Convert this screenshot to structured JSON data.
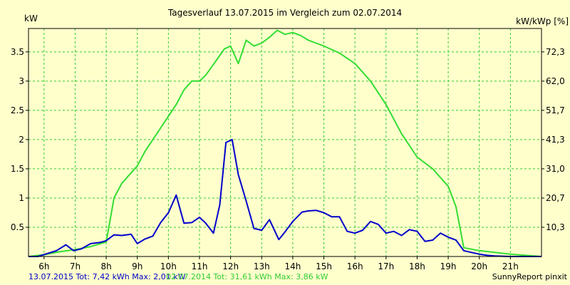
{
  "chart_data": {
    "type": "line",
    "title": "Tagesverlauf 13.07.2015 im Vergleich zum 02.07.2014",
    "ylabel_left": "kW",
    "ylabel_right": "kW/kWp [%]",
    "xlim": [
      5.5,
      22.0
    ],
    "ylim": [
      0,
      3.9
    ],
    "grid": true,
    "x_ticks": [
      {
        "x": 6,
        "label": "6h"
      },
      {
        "x": 7,
        "label": "7h"
      },
      {
        "x": 8,
        "label": "8h"
      },
      {
        "x": 9,
        "label": "9h"
      },
      {
        "x": 10,
        "label": "10h"
      },
      {
        "x": 11,
        "label": "11h"
      },
      {
        "x": 12,
        "label": "12h"
      },
      {
        "x": 13,
        "label": "13h"
      },
      {
        "x": 14,
        "label": "14h"
      },
      {
        "x": 15,
        "label": "15h"
      },
      {
        "x": 16,
        "label": "16h"
      },
      {
        "x": 17,
        "label": "17h"
      },
      {
        "x": 18,
        "label": "18h"
      },
      {
        "x": 19,
        "label": "19h"
      },
      {
        "x": 20,
        "label": "20h"
      },
      {
        "x": 21,
        "label": "21h"
      }
    ],
    "y_ticks_left": [
      {
        "y": 0.5,
        "label": "0.5"
      },
      {
        "y": 1,
        "label": "1"
      },
      {
        "y": 1.5,
        "label": "1.5"
      },
      {
        "y": 2,
        "label": "2"
      },
      {
        "y": 2.5,
        "label": "2.5"
      },
      {
        "y": 3,
        "label": "3"
      },
      {
        "y": 3.5,
        "label": "3.5"
      }
    ],
    "y_ticks_right": [
      {
        "y": 0.5,
        "label": "10,3"
      },
      {
        "y": 1,
        "label": "20,7"
      },
      {
        "y": 1.5,
        "label": "31,0"
      },
      {
        "y": 2,
        "label": "41,3"
      },
      {
        "y": 2.5,
        "label": "51,7"
      },
      {
        "y": 3,
        "label": "62,0"
      },
      {
        "y": 3.5,
        "label": "72,3"
      }
    ],
    "series": [
      {
        "name": "13.07.2015",
        "color": "#0000cc",
        "x": [
          5.5,
          5.8,
          6.1,
          6.4,
          6.7,
          6.95,
          7.2,
          7.5,
          7.8,
          8.0,
          8.25,
          8.5,
          8.8,
          9.0,
          9.25,
          9.5,
          9.75,
          10.0,
          10.25,
          10.5,
          10.75,
          11.0,
          11.2,
          11.45,
          11.65,
          11.85,
          12.05,
          12.25,
          12.5,
          12.75,
          13.0,
          13.25,
          13.55,
          13.75,
          14.0,
          14.3,
          14.5,
          14.75,
          15.0,
          15.25,
          15.5,
          15.75,
          16.0,
          16.25,
          16.5,
          16.75,
          17.0,
          17.25,
          17.5,
          17.75,
          18.0,
          18.25,
          18.5,
          18.75,
          19.0,
          19.25,
          19.5,
          19.75,
          20.0,
          20.25,
          20.5,
          21.0,
          21.5,
          22.0
        ],
        "y": [
          0.0,
          0.0,
          0.05,
          0.1,
          0.2,
          0.1,
          0.13,
          0.22,
          0.24,
          0.27,
          0.37,
          0.36,
          0.38,
          0.22,
          0.3,
          0.35,
          0.58,
          0.75,
          1.05,
          0.57,
          0.58,
          0.67,
          0.57,
          0.4,
          0.88,
          1.95,
          2.0,
          1.4,
          0.95,
          0.48,
          0.45,
          0.63,
          0.29,
          0.42,
          0.6,
          0.76,
          0.78,
          0.79,
          0.75,
          0.68,
          0.68,
          0.43,
          0.4,
          0.45,
          0.6,
          0.55,
          0.4,
          0.43,
          0.36,
          0.46,
          0.43,
          0.26,
          0.28,
          0.4,
          0.33,
          0.28,
          0.1,
          0.07,
          0.04,
          0.02,
          0.01,
          0.0,
          0.0,
          0.0
        ]
      },
      {
        "name": "02.07.2014",
        "color": "#33dd33",
        "x": [
          5.5,
          6.0,
          6.5,
          7.0,
          7.5,
          8.0,
          8.25,
          8.5,
          8.75,
          9.0,
          9.25,
          9.5,
          9.75,
          10.0,
          10.25,
          10.5,
          10.75,
          11.0,
          11.2,
          11.4,
          11.6,
          11.8,
          12.0,
          12.25,
          12.5,
          12.75,
          13.0,
          13.25,
          13.5,
          13.75,
          14.0,
          14.25,
          14.5,
          14.75,
          15.0,
          15.5,
          16.0,
          16.5,
          17.0,
          17.5,
          18.0,
          18.5,
          19.0,
          19.25,
          19.5,
          20.0,
          20.5,
          21.0,
          21.5,
          22.0
        ],
        "y": [
          0.0,
          0.03,
          0.08,
          0.12,
          0.17,
          0.25,
          1.0,
          1.25,
          1.4,
          1.55,
          1.8,
          2.0,
          2.2,
          2.4,
          2.6,
          2.85,
          3.0,
          3.0,
          3.1,
          3.25,
          3.4,
          3.55,
          3.6,
          3.3,
          3.7,
          3.6,
          3.65,
          3.75,
          3.87,
          3.8,
          3.83,
          3.78,
          3.7,
          3.65,
          3.6,
          3.48,
          3.3,
          3.0,
          2.6,
          2.1,
          1.7,
          1.5,
          1.2,
          0.85,
          0.15,
          0.1,
          0.07,
          0.04,
          0.02,
          0.0
        ]
      }
    ],
    "legend": {
      "placement": "bottom-left",
      "entry1": "13.07.2015 Tot: 7,42 kWh Max: 2,01 kW",
      "entry2": "02.07.2014 Tot: 31,61 kWh Max: 3,86 kW"
    },
    "footer_right": "SunnyReport pinxit",
    "colors": {
      "background": "#ffffcc",
      "grid": "#33cc33",
      "axis": "#000000"
    }
  }
}
